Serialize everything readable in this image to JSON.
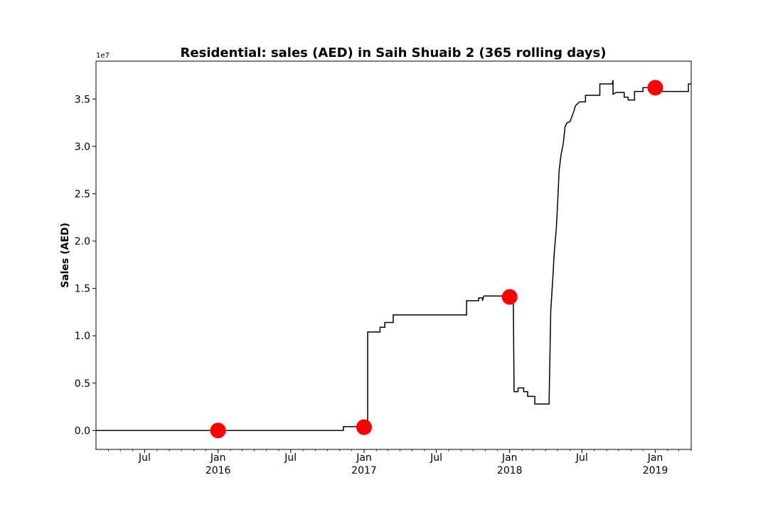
{
  "chart_data": {
    "type": "line",
    "title": "Residential: sales (AED) in Saih Shuaib 2 (365 rolling days)",
    "xlabel": "",
    "ylabel": "Sales (AED)",
    "y_offset_label": "1e7",
    "xlim": [
      "2015-03-01",
      "2019-04-01"
    ],
    "ylim": [
      -0.2,
      3.9
    ],
    "y_ticks": [
      0.0,
      0.5,
      1.0,
      1.5,
      2.0,
      2.5,
      3.0,
      3.5
    ],
    "y_tick_labels": [
      "0.0",
      "0.5",
      "1.0",
      "1.5",
      "2.0",
      "2.5",
      "3.0",
      "3.5"
    ],
    "x_ticks": [
      {
        "date": "2015-07-01",
        "line1": "Jul",
        "line2": ""
      },
      {
        "date": "2016-01-01",
        "line1": "Jan",
        "line2": "2016"
      },
      {
        "date": "2016-07-01",
        "line1": "Jul",
        "line2": ""
      },
      {
        "date": "2017-01-01",
        "line1": "Jan",
        "line2": "2017"
      },
      {
        "date": "2017-07-01",
        "line1": "Jul",
        "line2": ""
      },
      {
        "date": "2018-01-01",
        "line1": "Jan",
        "line2": "2018"
      },
      {
        "date": "2018-07-01",
        "line1": "Jul",
        "line2": ""
      },
      {
        "date": "2019-01-01",
        "line1": "Jan",
        "line2": "2019"
      }
    ],
    "grid": false,
    "line_color": "#000000",
    "marker_color": "#ff0000",
    "series": [
      {
        "x": [
          "2015-03-01",
          "2016-11-10",
          "2016-11-10",
          "2017-01-10",
          "2017-01-10",
          "2017-02-10",
          "2017-02-10",
          "2017-02-22",
          "2017-02-22",
          "2017-03-15",
          "2017-03-15",
          "2017-09-15",
          "2017-09-15",
          "2017-10-15",
          "2017-10-15",
          "2017-10-25",
          "2017-10-25",
          "2017-10-28",
          "2017-10-30",
          "2018-01-10",
          "2018-01-12",
          "2018-01-22",
          "2018-01-22",
          "2018-02-05",
          "2018-02-05",
          "2018-02-15",
          "2018-02-15",
          "2018-03-05",
          "2018-03-05",
          "2018-04-10",
          "2018-04-10",
          "2018-04-14",
          "2018-04-16",
          "2018-04-20",
          "2018-04-22",
          "2018-04-28",
          "2018-05-02",
          "2018-05-05",
          "2018-05-10",
          "2018-05-15",
          "2018-05-20",
          "2018-05-25",
          "2018-06-01",
          "2018-06-10",
          "2018-06-15",
          "2018-06-25",
          "2018-07-01",
          "2018-07-10",
          "2018-07-10",
          "2018-07-20",
          "2018-07-20",
          "2018-08-15",
          "2018-08-15",
          "2018-09-15",
          "2018-09-17",
          "2018-09-17",
          "2018-09-25",
          "2018-10-15",
          "2018-10-15",
          "2018-10-25",
          "2018-10-25",
          "2018-11-10",
          "2018-11-10",
          "2018-12-01",
          "2018-12-01",
          "2019-01-10",
          "2019-01-10",
          "2019-03-25",
          "2019-03-25",
          "2019-04-01"
        ],
        "y": [
          0.0,
          0.0,
          0.04,
          0.04,
          1.04,
          1.04,
          1.09,
          1.09,
          1.14,
          1.14,
          1.22,
          1.22,
          1.37,
          1.37,
          1.4,
          1.4,
          1.37,
          1.42,
          1.42,
          1.42,
          0.41,
          0.41,
          0.45,
          0.45,
          0.41,
          0.41,
          0.36,
          0.36,
          0.28,
          0.28,
          0.36,
          1.27,
          1.4,
          1.67,
          1.84,
          2.14,
          2.47,
          2.75,
          2.92,
          3.02,
          3.21,
          3.25,
          3.26,
          3.36,
          3.43,
          3.47,
          3.47,
          3.47,
          3.54,
          3.54,
          3.54,
          3.54,
          3.66,
          3.66,
          3.7,
          3.55,
          3.57,
          3.57,
          3.52,
          3.52,
          3.49,
          3.49,
          3.58,
          3.58,
          3.62,
          3.62,
          3.58,
          3.58,
          3.66,
          3.66
        ]
      }
    ],
    "markers": [
      {
        "x": "2016-01-01",
        "y": 0.0
      },
      {
        "x": "2017-01-01",
        "y": 0.035
      },
      {
        "x": "2018-01-01",
        "y": 1.41
      },
      {
        "x": "2019-01-01",
        "y": 3.62
      }
    ]
  }
}
